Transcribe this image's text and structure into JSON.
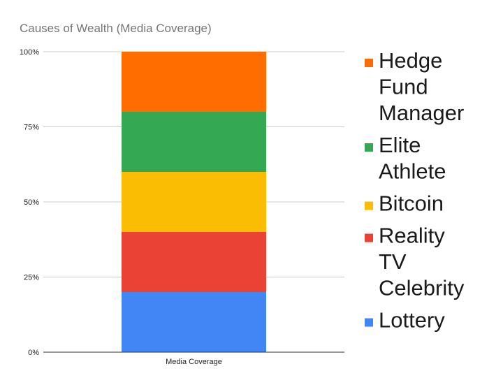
{
  "chart_data": {
    "type": "bar",
    "stacked": true,
    "normalized": true,
    "title": "Causes of Wealth (Media Coverage)",
    "xlabel": "",
    "ylabel": "",
    "categories": [
      "Media Coverage"
    ],
    "ylim": [
      0,
      1
    ],
    "yticks": [
      0,
      0.25,
      0.5,
      0.75,
      1
    ],
    "ytick_labels": [
      "0%",
      "25%",
      "50%",
      "75%",
      "100%"
    ],
    "grid": true,
    "legend_position": "right",
    "series": [
      {
        "name": "Lottery",
        "values": [
          0.2
        ],
        "color": "#4285f4"
      },
      {
        "name": "Reality TV Celebrity",
        "values": [
          0.2
        ],
        "color": "#ea4335"
      },
      {
        "name": "Bitcoin",
        "values": [
          0.2
        ],
        "color": "#fbbc04"
      },
      {
        "name": "Elite Athlete",
        "values": [
          0.2
        ],
        "color": "#34a853"
      },
      {
        "name": "Hedge Fund Manager",
        "values": [
          0.2
        ],
        "color": "#ff6d01"
      }
    ],
    "legend_lines": [
      [
        "Hedge",
        "Fund",
        "Manager"
      ],
      [
        "Elite",
        "Athlete"
      ],
      [
        "Bitcoin"
      ],
      [
        "Reality",
        "TV",
        "Celebrity"
      ],
      [
        "Lottery"
      ]
    ]
  }
}
